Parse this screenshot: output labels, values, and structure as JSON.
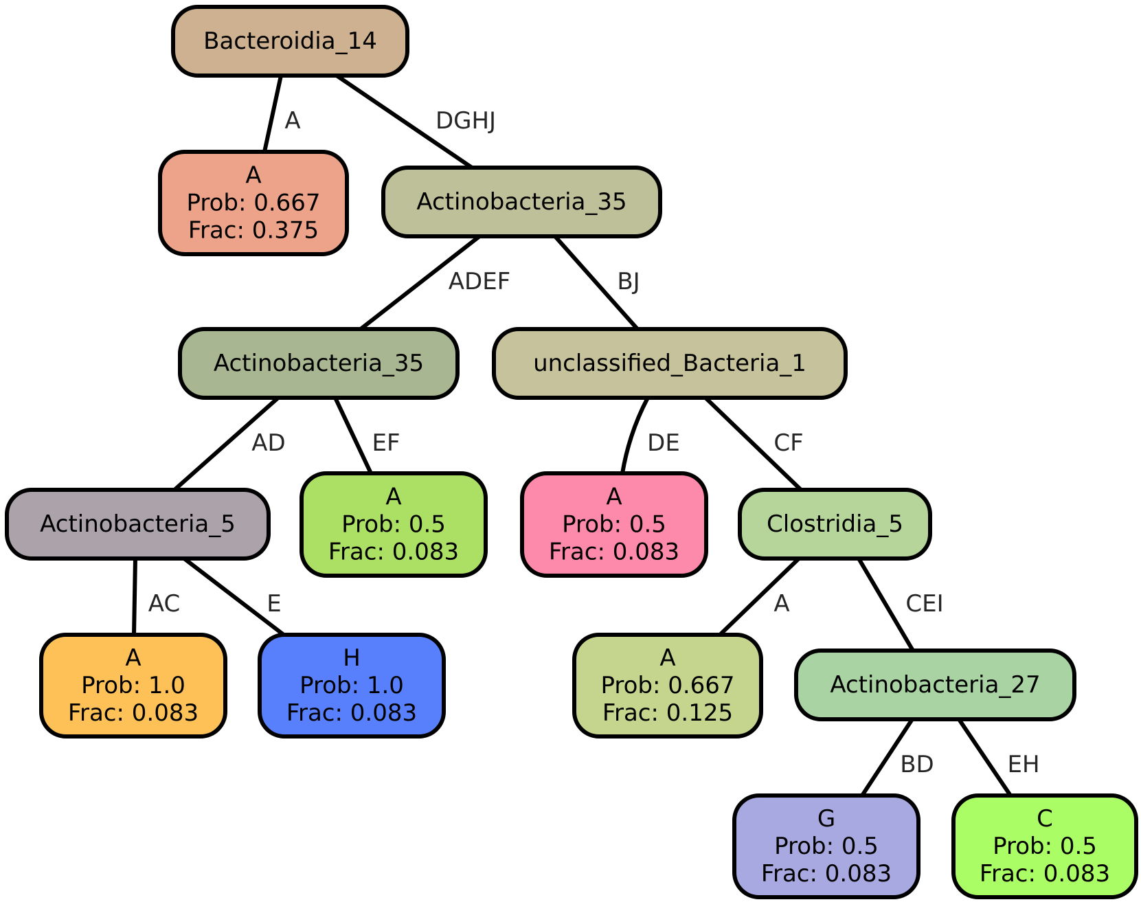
{
  "nodes": [
    {
      "id": "n1",
      "lines": [
        "Bacteroidia_14"
      ],
      "fill": "#ceb190"
    },
    {
      "id": "n2",
      "lines": [
        "A",
        "Prob: 0.667",
        "Frac: 0.375"
      ],
      "fill": "#eca389"
    },
    {
      "id": "n3",
      "lines": [
        "Actinobacteria_35"
      ],
      "fill": "#bec09a"
    },
    {
      "id": "n4",
      "lines": [
        "Actinobacteria_35"
      ],
      "fill": "#a9b692"
    },
    {
      "id": "n5",
      "lines": [
        "unclassified_Bacteria_1"
      ],
      "fill": "#c6c39c"
    },
    {
      "id": "n6",
      "lines": [
        "Actinobacteria_5"
      ],
      "fill": "#aba2aa"
    },
    {
      "id": "n7",
      "lines": [
        "A",
        "Prob: 0.5",
        "Frac: 0.083"
      ],
      "fill": "#abe065"
    },
    {
      "id": "n8",
      "lines": [
        "A",
        "Prob: 0.5",
        "Frac: 0.083"
      ],
      "fill": "#fd8aab"
    },
    {
      "id": "n9",
      "lines": [
        "Clostridia_5"
      ],
      "fill": "#b6d59a"
    },
    {
      "id": "n10",
      "lines": [
        "A",
        "Prob: 1.0",
        "Frac: 0.083"
      ],
      "fill": "#fdc158"
    },
    {
      "id": "n11",
      "lines": [
        "H",
        "Prob: 1.0",
        "Frac: 0.083"
      ],
      "fill": "#5880fd"
    },
    {
      "id": "n12",
      "lines": [
        "A",
        "Prob: 0.667",
        "Frac: 0.125"
      ],
      "fill": "#c5d58e"
    },
    {
      "id": "n13",
      "lines": [
        "Actinobacteria_27"
      ],
      "fill": "#a9d3a3"
    },
    {
      "id": "n14",
      "lines": [
        "G",
        "Prob: 0.5",
        "Frac: 0.083"
      ],
      "fill": "#a9a9e2"
    },
    {
      "id": "n15",
      "lines": [
        "C",
        "Prob: 0.5",
        "Frac: 0.083"
      ],
      "fill": "#abfd65"
    }
  ],
  "edges": [
    {
      "from": "n1",
      "to": "n2",
      "label": "A"
    },
    {
      "from": "n1",
      "to": "n3",
      "label": "DGHJ"
    },
    {
      "from": "n3",
      "to": "n4",
      "label": "ADEF"
    },
    {
      "from": "n3",
      "to": "n5",
      "label": "BJ"
    },
    {
      "from": "n4",
      "to": "n6",
      "label": "AD"
    },
    {
      "from": "n4",
      "to": "n7",
      "label": "EF"
    },
    {
      "from": "n5",
      "to": "n8",
      "label": "DE"
    },
    {
      "from": "n5",
      "to": "n9",
      "label": "CF"
    },
    {
      "from": "n6",
      "to": "n10",
      "label": "AC"
    },
    {
      "from": "n6",
      "to": "n11",
      "label": "E"
    },
    {
      "from": "n9",
      "to": "n12",
      "label": "A"
    },
    {
      "from": "n9",
      "to": "n13",
      "label": "CEI"
    },
    {
      "from": "n13",
      "to": "n14",
      "label": "BD"
    },
    {
      "from": "n13",
      "to": "n15",
      "label": "EH"
    }
  ]
}
